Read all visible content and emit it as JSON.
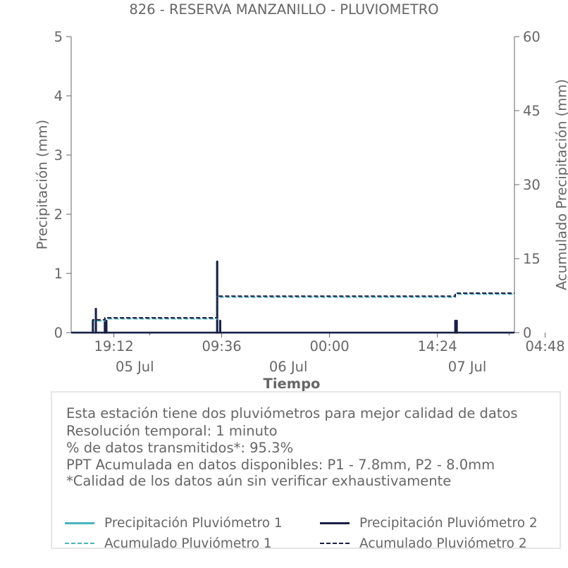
{
  "chart_data": {
    "type": "line",
    "title": "826 - RESERVA MANZANILLO - PLUVIOMETRO",
    "xlabel": "Tiempo",
    "ylabel": "Precipitación (mm)",
    "ylabel_right": "Acumulado Precipitación (mm)",
    "ylim": [
      0,
      5
    ],
    "ylim_right": [
      0,
      60
    ],
    "yticks": [
      "0",
      "1",
      "2",
      "3",
      "4",
      "5"
    ],
    "yticks_right": [
      "0",
      "15",
      "30",
      "45",
      "60"
    ],
    "x_ticks": [
      {
        "label": "19:12",
        "date": "05 Jul"
      },
      {
        "label": "09:36",
        "date": ""
      },
      {
        "label": "00:00",
        "date": "06 Jul"
      },
      {
        "label": "14:24",
        "date": ""
      },
      {
        "label": "04:48",
        "date": "07 Jul"
      }
    ],
    "x_domain_hours": [
      -5.7,
      53.5
    ],
    "colors": {
      "p1": "#4bb3c2",
      "p2": "#1b1f45",
      "axis": "#666666"
    },
    "series": [
      {
        "name": "Precipitación Pluviómetro 1",
        "axis": "left",
        "style": "solid",
        "x": [
          -2.8,
          -2.4,
          -1.2,
          -1.0,
          13.8,
          14.2,
          45.6
        ],
        "y": [
          0.2,
          0.4,
          0.2,
          0.2,
          1.2,
          0.2,
          0.2
        ]
      },
      {
        "name": "Precipitación Pluviómetro 2",
        "axis": "left",
        "style": "solid",
        "x": [
          -2.8,
          -2.4,
          -1.2,
          -1.0,
          13.8,
          14.2,
          45.6,
          45.8
        ],
        "y": [
          0.2,
          0.4,
          0.2,
          0.2,
          1.2,
          0.2,
          0.2,
          0.2
        ]
      },
      {
        "name": "Acumulado Pluviómetro 1",
        "axis": "right",
        "style": "dashed",
        "x": [
          -5.7,
          -2.8,
          -2.4,
          -1.2,
          -1.0,
          13.8,
          14.2,
          45.6,
          53.5
        ],
        "y": [
          0,
          2.4,
          2.4,
          2.8,
          2.8,
          7.2,
          7.2,
          7.8,
          7.8
        ]
      },
      {
        "name": "Acumulado Pluviómetro 2",
        "axis": "right",
        "style": "dashed",
        "x": [
          -5.7,
          -2.8,
          -2.4,
          -1.2,
          -1.0,
          13.8,
          14.2,
          45.6,
          53.5
        ],
        "y": [
          0,
          2.6,
          2.6,
          3.0,
          3.0,
          7.4,
          7.4,
          8.0,
          8.0
        ]
      }
    ]
  },
  "notes": [
    "Esta estación tiene dos pluviómetros para mejor calidad de datos",
    "Resolución temporal: 1 minuto",
    "% de datos transmitidos*: 95.3%",
    "PPT Acumulada en datos disponibles: P1 - 7.8mm, P2 - 8.0mm",
    "*Calidad de los datos aún sin verificar exhaustivamente"
  ],
  "legend": {
    "p1_precip": "Precipitación Pluviómetro 1",
    "p2_precip": "Precipitación Pluviómetro 2",
    "p1_accum": "Acumulado Pluviómetro 1",
    "p2_accum": "Acumulado Pluviómetro 2"
  }
}
